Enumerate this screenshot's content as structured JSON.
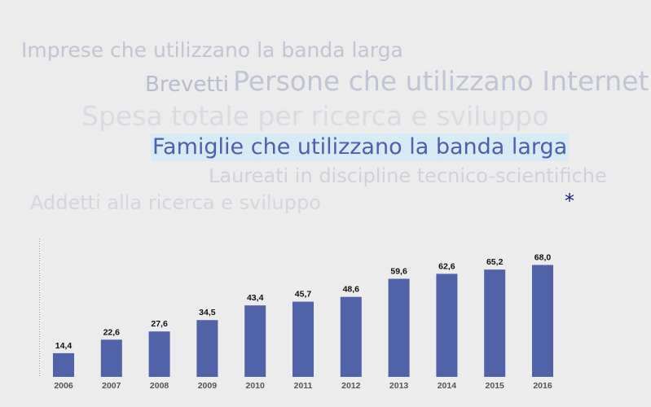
{
  "cloud": {
    "imprese": "Imprese che utilizzano la banda larga",
    "brevetti": "Brevetti",
    "persone": "Persone che utilizzano Internet",
    "spesa": "Spesa totale per ricerca e sviluppo",
    "famiglie": "Famiglie che utilizzano la banda larga",
    "laureati": "Laureati in discipline tecnico-scientifiche",
    "addetti": "Addetti alla ricerca e sviluppo"
  },
  "asterisk": "*",
  "colors": {
    "bar": "#5063a8",
    "selected_text": "#4e60a8",
    "selected_bg": "#d7ebf7",
    "background": "#ececec"
  },
  "chart_data": {
    "type": "bar",
    "categories": [
      "2006",
      "2007",
      "2008",
      "2009",
      "2010",
      "2011",
      "2012",
      "2013",
      "2014",
      "2015",
      "2016"
    ],
    "values": [
      14.4,
      22.6,
      27.6,
      34.5,
      43.4,
      45.7,
      48.6,
      59.6,
      62.6,
      65.2,
      68.0
    ],
    "value_labels": [
      "14,4",
      "22,6",
      "27,6",
      "34,5",
      "43,4",
      "45,7",
      "48,6",
      "59,6",
      "62,6",
      "65,2",
      "68,0"
    ],
    "title": "",
    "xlabel": "",
    "ylabel": "",
    "ylim": [
      0,
      75
    ]
  }
}
